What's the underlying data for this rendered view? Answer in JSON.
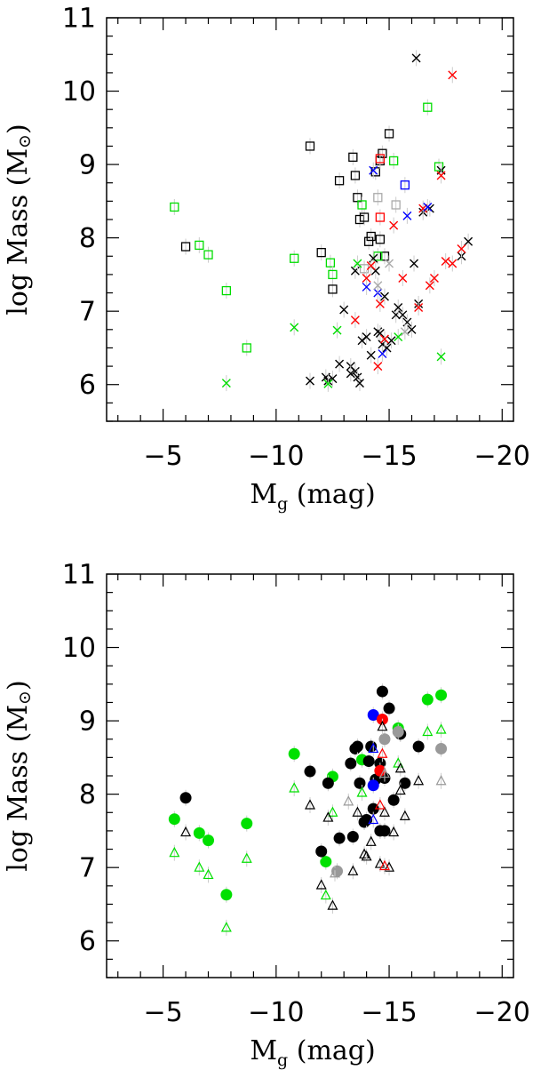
{
  "chart_data": [
    {
      "type": "scatter",
      "panel": "top",
      "xlabel": "M",
      "xlabel_sub": "g",
      "xlabel_unit": " (mag)",
      "ylabel": "log Mass (M",
      "ylabel_sym": "⊙",
      "ylabel_end": ")",
      "xlim": [
        -2.5,
        -20.5
      ],
      "ylim": [
        5.5,
        11
      ],
      "x_ticks": [
        -5,
        -10,
        -15,
        -20
      ],
      "x_tick_labels": [
        "−5",
        "−10",
        "−15",
        "−20"
      ],
      "y_ticks": [
        6,
        7,
        8,
        9,
        10,
        11
      ],
      "y_tick_labels": [
        "6",
        "7",
        "8",
        "9",
        "10",
        "11"
      ],
      "series": [
        {
          "name": "black squares",
          "marker": "square",
          "color": "#000000",
          "points": [
            [
              -6,
              7.88
            ],
            [
              -11.5,
              9.25
            ],
            [
              -12,
              7.8
            ],
            [
              -12.5,
              7.3
            ],
            [
              -12.8,
              8.78
            ],
            [
              -13.4,
              9.1
            ],
            [
              -13.5,
              8.85
            ],
            [
              -13.6,
              8.55
            ],
            [
              -13.7,
              8.25
            ],
            [
              -13.9,
              8.28
            ],
            [
              -14.1,
              7.95
            ],
            [
              -14.2,
              8.02
            ],
            [
              -14.4,
              8.9
            ],
            [
              -14.6,
              9.05
            ],
            [
              -14.7,
              9.15
            ],
            [
              -15,
              9.42
            ],
            [
              -14.6,
              7.98
            ],
            [
              -14.8,
              7.75
            ]
          ]
        },
        {
          "name": "green squares",
          "marker": "square",
          "color": "#00dd00",
          "points": [
            [
              -5.5,
              8.42
            ],
            [
              -6.6,
              7.9
            ],
            [
              -7,
              7.77
            ],
            [
              -7.8,
              7.28
            ],
            [
              -8.7,
              6.5
            ],
            [
              -10.8,
              7.72
            ],
            [
              -12.4,
              7.66
            ],
            [
              -12.5,
              7.5
            ],
            [
              -13.8,
              8.45
            ],
            [
              -14.5,
              7.75
            ],
            [
              -15.2,
              9.05
            ],
            [
              -16.7,
              9.78
            ],
            [
              -17.2,
              8.97
            ]
          ]
        },
        {
          "name": "grey squares",
          "marker": "square",
          "color": "#aaaaaa",
          "points": [
            [
              -13.9,
              7.58
            ],
            [
              -14.5,
              8.55
            ],
            [
              -15.3,
              8.45
            ]
          ]
        },
        {
          "name": "blue squares",
          "marker": "square",
          "color": "#0000ff",
          "points": [
            [
              -15.7,
              8.72
            ]
          ]
        },
        {
          "name": "red squares",
          "marker": "square",
          "color": "#ff0000",
          "points": [
            [
              -14.6,
              9.08
            ],
            [
              -14.6,
              8.28
            ]
          ]
        },
        {
          "name": "black crosses",
          "marker": "cross",
          "color": "#000000",
          "points": [
            [
              -11.5,
              6.05
            ],
            [
              -12.2,
              6.1
            ],
            [
              -12.3,
              6.05
            ],
            [
              -12.5,
              6.08
            ],
            [
              -12.8,
              6.28
            ],
            [
              -13,
              7.02
            ],
            [
              -13.3,
              6.25
            ],
            [
              -13.3,
              6.15
            ],
            [
              -13.5,
              6.18
            ],
            [
              -13.6,
              6.1
            ],
            [
              -13.7,
              6.02
            ],
            [
              -13.8,
              6.6
            ],
            [
              -14,
              6.65
            ],
            [
              -14.2,
              6.4
            ],
            [
              -14.3,
              7.72
            ],
            [
              -14.5,
              6.72
            ],
            [
              -14.6,
              6.7
            ],
            [
              -14.7,
              6.55
            ],
            [
              -14.8,
              7.2
            ],
            [
              -14.9,
              6.5
            ],
            [
              -15.1,
              6.6
            ],
            [
              -15.3,
              6.95
            ],
            [
              -15.4,
              7.05
            ],
            [
              -15.6,
              6.95
            ],
            [
              -15.8,
              6.85
            ],
            [
              -16,
              6.75
            ],
            [
              -16.1,
              7.65
            ],
            [
              -16.3,
              7.1
            ],
            [
              -16.2,
              10.45
            ],
            [
              -16.5,
              8.35
            ],
            [
              -16.8,
              8.4
            ],
            [
              -17.3,
              8.92
            ],
            [
              -18.2,
              7.75
            ],
            [
              -18.5,
              7.95
            ],
            [
              -13.5,
              7.55
            ],
            [
              -14.4,
              7.55
            ]
          ]
        },
        {
          "name": "red crosses",
          "marker": "cross",
          "color": "#ff0000",
          "points": [
            [
              -13.5,
              6.88
            ],
            [
              -14,
              7.45
            ],
            [
              -14.2,
              7.62
            ],
            [
              -14.5,
              6.25
            ],
            [
              -14.6,
              7.1
            ],
            [
              -14.8,
              6.62
            ],
            [
              -15.2,
              8.17
            ],
            [
              -15.6,
              7.45
            ],
            [
              -16.3,
              7.05
            ],
            [
              -16.8,
              7.35
            ],
            [
              -17,
              7.45
            ],
            [
              -17.5,
              7.68
            ],
            [
              -17.8,
              7.65
            ],
            [
              -17.8,
              10.22
            ],
            [
              -18.2,
              7.85
            ],
            [
              -17.3,
              8.85
            ],
            [
              -16.5,
              8.4
            ]
          ]
        },
        {
          "name": "green crosses",
          "marker": "cross",
          "color": "#00dd00",
          "points": [
            [
              -7.8,
              6.02
            ],
            [
              -10.8,
              6.78
            ],
            [
              -12.3,
              6.01
            ],
            [
              -12.7,
              6.74
            ],
            [
              -13.6,
              7.65
            ],
            [
              -15.4,
              6.65
            ],
            [
              -17.3,
              6.38
            ]
          ]
        },
        {
          "name": "blue crosses",
          "marker": "cross",
          "color": "#0000ff",
          "points": [
            [
              -14,
              7.33
            ],
            [
              -14.3,
              8.92
            ],
            [
              -14.5,
              7.25
            ],
            [
              -15.8,
              8.3
            ],
            [
              -16.7,
              8.42
            ],
            [
              -14.7,
              6.42
            ]
          ]
        },
        {
          "name": "grey crosses",
          "marker": "cross",
          "color": "#aaaaaa",
          "points": [
            [
              -14.5,
              7.35
            ],
            [
              -15,
              7.65
            ],
            [
              -15.7,
              6.72
            ]
          ]
        }
      ]
    },
    {
      "type": "scatter",
      "panel": "bottom",
      "xlabel": "M",
      "xlabel_sub": "g",
      "xlabel_unit": " (mag)",
      "ylabel": "log Mass (M",
      "ylabel_sym": "⊙",
      "ylabel_end": ")",
      "xlim": [
        -2.5,
        -20.5
      ],
      "ylim": [
        5.5,
        11
      ],
      "x_ticks": [
        -5,
        -10,
        -15,
        -20
      ],
      "x_tick_labels": [
        "−5",
        "−10",
        "−15",
        "−20"
      ],
      "y_ticks": [
        6,
        7,
        8,
        9,
        10,
        11
      ],
      "y_tick_labels": [
        "6",
        "7",
        "8",
        "9",
        "10",
        "11"
      ],
      "series": [
        {
          "name": "green filled circles",
          "marker": "circle",
          "color": "#00e000",
          "points": [
            [
              -5.5,
              7.66
            ],
            [
              -6.6,
              7.47
            ],
            [
              -7,
              7.37
            ],
            [
              -7.8,
              6.63
            ],
            [
              -8.7,
              7.6
            ],
            [
              -10.8,
              8.55
            ],
            [
              -12.2,
              7.08
            ],
            [
              -12.5,
              8.24
            ],
            [
              -13.8,
              8.47
            ],
            [
              -15.4,
              8.9
            ],
            [
              -16.7,
              9.29
            ],
            [
              -17.3,
              9.35
            ]
          ]
        },
        {
          "name": "black filled circles",
          "marker": "circle",
          "color": "#000000",
          "points": [
            [
              -6,
              7.95
            ],
            [
              -11.5,
              8.31
            ],
            [
              -12,
              7.22
            ],
            [
              -12.3,
              8.15
            ],
            [
              -12.8,
              7.4
            ],
            [
              -13.3,
              8.42
            ],
            [
              -13.5,
              8.62
            ],
            [
              -13.6,
              8.65
            ],
            [
              -13.4,
              7.42
            ],
            [
              -13.7,
              8.15
            ],
            [
              -13.9,
              7.62
            ],
            [
              -14,
              7.65
            ],
            [
              -14.1,
              8.45
            ],
            [
              -14.2,
              8.65
            ],
            [
              -14.3,
              7.8
            ],
            [
              -14.4,
              8.2
            ],
            [
              -14.6,
              7.5
            ],
            [
              -14.6,
              8.42
            ],
            [
              -14.7,
              9.4
            ],
            [
              -14.8,
              8.22
            ],
            [
              -15,
              9.17
            ],
            [
              -15.2,
              7.92
            ],
            [
              -15.5,
              8.82
            ],
            [
              -15.7,
              8.15
            ],
            [
              -16.3,
              8.65
            ],
            [
              -14.8,
              7.5
            ]
          ]
        },
        {
          "name": "grey filled circles",
          "marker": "circle",
          "color": "#999999",
          "points": [
            [
              -12.7,
              6.95
            ],
            [
              -14.8,
              8.75
            ],
            [
              -15.4,
              8.85
            ],
            [
              -17.3,
              8.62
            ]
          ]
        },
        {
          "name": "blue filled circles",
          "marker": "circle",
          "color": "#0000ff",
          "points": [
            [
              -14.3,
              9.08
            ],
            [
              -14.3,
              8.12
            ]
          ]
        },
        {
          "name": "red filled circles",
          "marker": "circle",
          "color": "#ff0000",
          "points": [
            [
              -14.7,
              9.02
            ],
            [
              -14.6,
              8.32
            ]
          ]
        },
        {
          "name": "green open triangles",
          "marker": "triangle",
          "color": "#00e000",
          "points": [
            [
              -5.5,
              7.2
            ],
            [
              -6.6,
              7.0
            ],
            [
              -7,
              6.9
            ],
            [
              -7.8,
              6.18
            ],
            [
              -8.7,
              7.12
            ],
            [
              -10.8,
              8.08
            ],
            [
              -12.2,
              6.62
            ],
            [
              -12.5,
              7.75
            ],
            [
              -13.8,
              8.02
            ],
            [
              -15.4,
              8.42
            ],
            [
              -16.7,
              8.85
            ],
            [
              -17.3,
              8.88
            ]
          ]
        },
        {
          "name": "black open triangles",
          "marker": "triangle",
          "color": "#000000",
          "points": [
            [
              -6,
              7.48
            ],
            [
              -11.5,
              7.85
            ],
            [
              -12,
              6.76
            ],
            [
              -12.3,
              7.68
            ],
            [
              -12.5,
              6.48
            ],
            [
              -13.4,
              6.95
            ],
            [
              -13.6,
              7.75
            ],
            [
              -13.9,
              7.18
            ],
            [
              -14,
              7.15
            ],
            [
              -14.2,
              7.35
            ],
            [
              -14.6,
              7.05
            ],
            [
              -14.7,
              8.92
            ],
            [
              -14.8,
              7.75
            ],
            [
              -15,
              7.0
            ],
            [
              -15.2,
              7.48
            ],
            [
              -15.5,
              8.35
            ],
            [
              -15.7,
              7.7
            ],
            [
              -16.3,
              8.18
            ],
            [
              -15.5,
              8.05
            ]
          ]
        },
        {
          "name": "grey open triangles",
          "marker": "triangle",
          "color": "#999999",
          "points": [
            [
              -12.6,
              6.92
            ],
            [
              -13.2,
              7.9
            ],
            [
              -14.8,
              8.28
            ],
            [
              -17.3,
              8.18
            ]
          ]
        },
        {
          "name": "blue open triangles",
          "marker": "triangle",
          "color": "#0000ff",
          "points": [
            [
              -14.3,
              8.62
            ],
            [
              -14.3,
              7.65
            ]
          ]
        },
        {
          "name": "red open triangles",
          "marker": "triangle",
          "color": "#ff0000",
          "points": [
            [
              -14.7,
              8.55
            ],
            [
              -14.6,
              7.85
            ],
            [
              -14.8,
              7.02
            ]
          ]
        }
      ]
    }
  ]
}
